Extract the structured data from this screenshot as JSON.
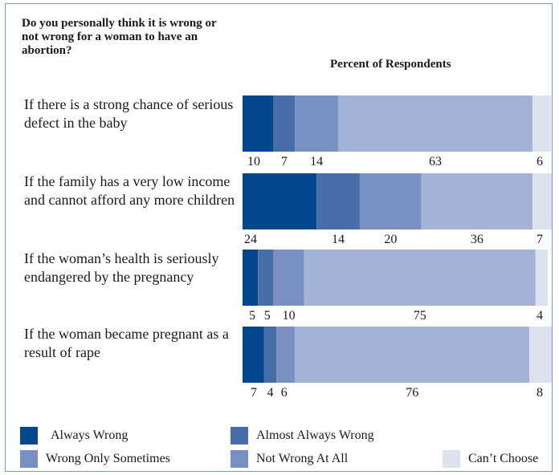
{
  "question": "Do you personally think it is wrong or not wrong for a woman to have an abortion?",
  "chart_data": {
    "type": "bar",
    "orientation": "horizontal",
    "stacked": true,
    "title": "",
    "xlabel": "Percent of Respondents",
    "xlim": [
      0,
      100
    ],
    "grid": false,
    "legend_position": "bottom",
    "categories": [
      "If there is a strong chance of serious defect in the baby",
      "If the family has a very low income and cannot afford any more children",
      "If the woman’s health is seriously endangered by the pregnancy",
      "If the woman became pregnant as a result of rape"
    ],
    "series": [
      {
        "name": "Always Wrong",
        "color": "#03478c",
        "values": [
          10,
          24,
          5,
          7
        ]
      },
      {
        "name": "Almost Always Wrong",
        "color": "#476ea8",
        "values": [
          7,
          14,
          5,
          4
        ]
      },
      {
        "name": "Wrong Only Sometimes",
        "color": "#7890c2",
        "values": [
          14,
          20,
          10,
          6
        ]
      },
      {
        "name": "Not Wrong At All",
        "color": "#a3b2d6",
        "values": [
          63,
          36,
          75,
          76
        ]
      },
      {
        "name": "Can’t Choose",
        "color": "#dde2ef",
        "values": [
          6,
          7,
          4,
          8
        ]
      }
    ]
  }
}
